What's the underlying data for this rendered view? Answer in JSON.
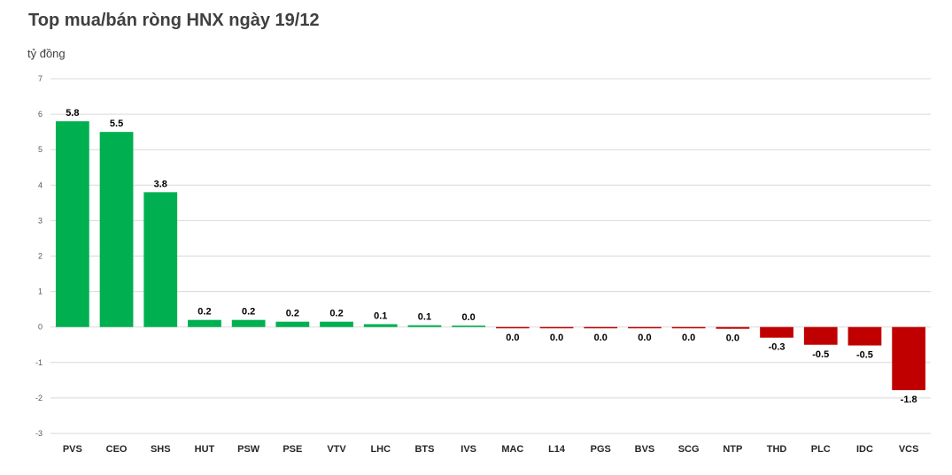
{
  "title": "Top mua/bán ròng HNX ngày 19/12",
  "unit_label": "tỷ đồng",
  "colors": {
    "positive": "#00b050",
    "negative": "#c00000",
    "grid": "#d9d9d9"
  },
  "chart_data": {
    "type": "bar",
    "title": "Top mua/bán ròng HNX ngày 19/12",
    "ylabel": "tỷ đồng",
    "ylim": [
      -3,
      7
    ],
    "yticks": [
      7,
      6,
      5,
      4,
      3,
      2,
      1,
      0,
      -1,
      -2,
      -3
    ],
    "grid": true,
    "categories": [
      "PVS",
      "CEO",
      "SHS",
      "HUT",
      "PSW",
      "PSE",
      "VTV",
      "LHC",
      "BTS",
      "IVS",
      "MAC",
      "L14",
      "PGS",
      "BVS",
      "SCG",
      "NTP",
      "THD",
      "PLC",
      "IDC",
      "VCS"
    ],
    "values": [
      5.8,
      5.5,
      3.8,
      0.2,
      0.2,
      0.15,
      0.15,
      0.08,
      0.05,
      0.04,
      -0.02,
      -0.02,
      -0.02,
      -0.02,
      -0.03,
      -0.05,
      -0.3,
      -0.5,
      -0.52,
      -1.78
    ],
    "labels": [
      "5.8",
      "5.5",
      "3.8",
      "0.2",
      "0.2",
      "0.2",
      "0.2",
      "0.1",
      "0.1",
      "0.0",
      "0.0",
      "0.0",
      "0.0",
      "0.0",
      "0.0",
      "0.0",
      "-0.3",
      "-0.5",
      "-0.5",
      "-1.8"
    ]
  }
}
